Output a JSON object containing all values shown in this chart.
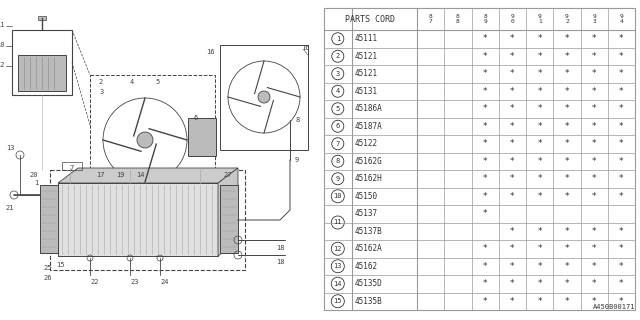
{
  "bg_color": "#ffffff",
  "parts_cord_header": "PARTS CORD",
  "year_cols": [
    "8\n7",
    "8\n8",
    "8\n9",
    "9\n0",
    "9\n1",
    "9\n2",
    "9\n3",
    "9\n4"
  ],
  "rows": [
    {
      "num": "1",
      "code": "45111",
      "stars": [
        0,
        0,
        1,
        1,
        1,
        1,
        1,
        1
      ]
    },
    {
      "num": "2",
      "code": "45121",
      "stars": [
        0,
        0,
        1,
        1,
        1,
        1,
        1,
        1
      ]
    },
    {
      "num": "3",
      "code": "45121",
      "stars": [
        0,
        0,
        1,
        1,
        1,
        1,
        1,
        1
      ]
    },
    {
      "num": "4",
      "code": "45131",
      "stars": [
        0,
        0,
        1,
        1,
        1,
        1,
        1,
        1
      ]
    },
    {
      "num": "5",
      "code": "45186A",
      "stars": [
        0,
        0,
        1,
        1,
        1,
        1,
        1,
        1
      ]
    },
    {
      "num": "6",
      "code": "45187A",
      "stars": [
        0,
        0,
        1,
        1,
        1,
        1,
        1,
        1
      ]
    },
    {
      "num": "7",
      "code": "45122",
      "stars": [
        0,
        0,
        1,
        1,
        1,
        1,
        1,
        1
      ]
    },
    {
      "num": "8",
      "code": "45162G",
      "stars": [
        0,
        0,
        1,
        1,
        1,
        1,
        1,
        1
      ]
    },
    {
      "num": "9",
      "code": "45162H",
      "stars": [
        0,
        0,
        1,
        1,
        1,
        1,
        1,
        1
      ]
    },
    {
      "num": "10",
      "code": "45150",
      "stars": [
        0,
        0,
        1,
        1,
        1,
        1,
        1,
        1
      ]
    },
    {
      "num": "11",
      "code": "45137",
      "stars": [
        0,
        0,
        1,
        0,
        0,
        0,
        0,
        0
      ],
      "sub": true
    },
    {
      "num": "",
      "code": "45137B",
      "stars": [
        0,
        0,
        0,
        1,
        1,
        1,
        1,
        1
      ],
      "sub": false
    },
    {
      "num": "12",
      "code": "45162A",
      "stars": [
        0,
        0,
        1,
        1,
        1,
        1,
        1,
        1
      ]
    },
    {
      "num": "13",
      "code": "45162",
      "stars": [
        0,
        0,
        1,
        1,
        1,
        1,
        1,
        1
      ]
    },
    {
      "num": "14",
      "code": "45135D",
      "stars": [
        0,
        0,
        1,
        1,
        1,
        1,
        1,
        1
      ]
    },
    {
      "num": "15",
      "code": "45135B",
      "stars": [
        0,
        0,
        1,
        1,
        1,
        1,
        1,
        1
      ]
    }
  ],
  "watermark": "A450B00171",
  "line_color": "#999999",
  "text_color": "#333333",
  "diag_color": "#444444",
  "diag_light": "#bbbbbb"
}
